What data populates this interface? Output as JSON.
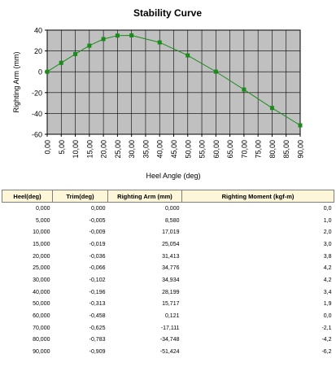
{
  "chart_data": {
    "type": "line",
    "title": "Stability Curve",
    "xlabel": "Heel Angle (deg)",
    "ylabel": "Righting Arm (mm)",
    "xlim": [
      0,
      90
    ],
    "ylim": [
      -60,
      40
    ],
    "x_ticks": [
      "0,00",
      "5,00",
      "10,00",
      "15,00",
      "20,00",
      "25,00",
      "30,00",
      "35,00",
      "40,00",
      "45,00",
      "50,00",
      "55,00",
      "60,00",
      "65,00",
      "70,00",
      "75,00",
      "80,00",
      "85,00",
      "90,00"
    ],
    "y_ticks": [
      "40",
      "20",
      "0",
      "-20",
      "-40",
      "-60"
    ],
    "grid": true,
    "legend": "none",
    "series": [
      {
        "color": "#1a8c1a",
        "x": [
          0,
          5,
          10,
          15,
          20,
          25,
          30,
          40,
          50,
          60,
          70,
          80,
          90
        ],
        "y": [
          0,
          8.58,
          17.019,
          25.054,
          31.413,
          34.776,
          34.934,
          28.199,
          15.717,
          0.121,
          -17.111,
          -34.748,
          -51.424
        ]
      }
    ],
    "plot_bg": "#c0c0c0"
  },
  "table": {
    "headers": [
      "Heel(deg)",
      "Trim(deg)",
      "Righting Arm (mm)",
      "Righting Moment (kgf-m)"
    ],
    "rows": [
      [
        "0,000",
        "0,000",
        "0,000",
        "0,0"
      ],
      [
        "5,000",
        "-0,005",
        "8,580",
        "1,0"
      ],
      [
        "10,000",
        "-0,009",
        "17,019",
        "2,0"
      ],
      [
        "15,000",
        "-0,019",
        "25,054",
        "3,0"
      ],
      [
        "20,000",
        "-0,036",
        "31,413",
        "3,8"
      ],
      [
        "25,000",
        "-0,066",
        "34,776",
        "4,2"
      ],
      [
        "30,000",
        "-0,102",
        "34,934",
        "4,2"
      ],
      [
        "40,000",
        "-0,196",
        "28,199",
        "3,4"
      ],
      [
        "50,000",
        "-0,313",
        "15,717",
        "1,9"
      ],
      [
        "60,000",
        "-0,458",
        "0,121",
        "0,0"
      ],
      [
        "70,000",
        "-0,625",
        "-17,111",
        "-2,1"
      ],
      [
        "80,000",
        "-0,783",
        "-34,748",
        "-4,2"
      ],
      [
        "90,000",
        "-0,909",
        "-51,424",
        "-6,2"
      ]
    ]
  }
}
